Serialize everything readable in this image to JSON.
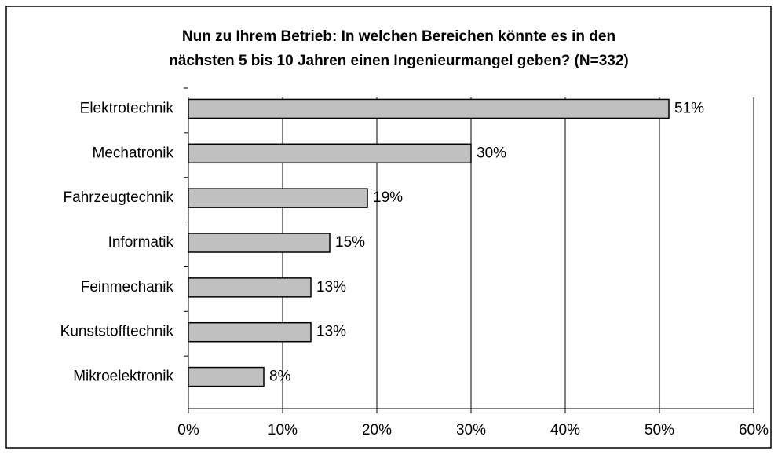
{
  "chart_data": {
    "type": "bar",
    "orientation": "horizontal",
    "title": [
      "Nun zu Ihrem Betrieb: In welchen Bereichen könnte es in den",
      "nächsten 5 bis 10 Jahren einen Ingenieurmangel geben? (N=332)"
    ],
    "categories": [
      "Elektrotechnik",
      "Mechatronik",
      "Fahrzeugtechnik",
      "Informatik",
      "Feinmechanik",
      "Kunststofftechnik",
      "Mikroelektronik"
    ],
    "values": [
      51,
      30,
      19,
      15,
      13,
      13,
      8
    ],
    "value_labels": [
      "51%",
      "30%",
      "19%",
      "15%",
      "13%",
      "13%",
      "8%"
    ],
    "color": "#c0c0c0",
    "xlim": [
      0,
      60
    ],
    "xticks": [
      {
        "value": 0,
        "label": "0%"
      },
      {
        "value": 10,
        "label": "10%"
      },
      {
        "value": 20,
        "label": "20%"
      },
      {
        "value": 30,
        "label": "30%"
      },
      {
        "value": 40,
        "label": "40%"
      },
      {
        "value": 50,
        "label": "50%"
      },
      {
        "value": 60,
        "label": "60%"
      }
    ],
    "grid": true
  }
}
